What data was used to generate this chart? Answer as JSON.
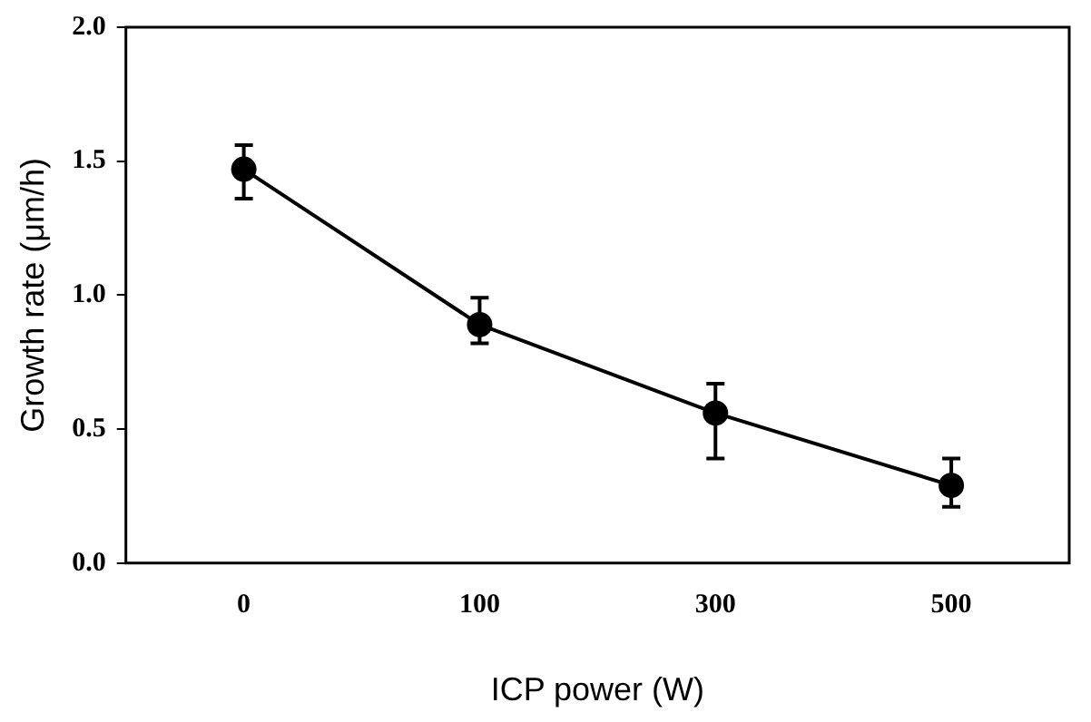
{
  "chart_data": {
    "type": "line",
    "xlabel": "ICP power (W)",
    "ylabel": "Growth rate (μm/h)",
    "categories": [
      "0",
      "100",
      "300",
      "500"
    ],
    "series": [
      {
        "color": "#000000",
        "values": [
          1.47,
          0.89,
          0.56,
          0.29
        ],
        "errors": [
          [
            1.36,
            1.56
          ],
          [
            0.82,
            0.99
          ],
          [
            0.39,
            0.67
          ],
          [
            0.21,
            0.39
          ]
        ]
      }
    ],
    "ylim": [
      0,
      2
    ],
    "yticks": [
      {
        "value": 0,
        "label": "0.0"
      },
      {
        "value": 0.5,
        "label": "0.5"
      },
      {
        "value": 1,
        "label": "1.0"
      },
      {
        "value": 1.5,
        "label": "1.5"
      },
      {
        "value": 2,
        "label": "2.0"
      }
    ],
    "grid": false,
    "legend": false,
    "marker": "circle",
    "line_style": "solid"
  }
}
